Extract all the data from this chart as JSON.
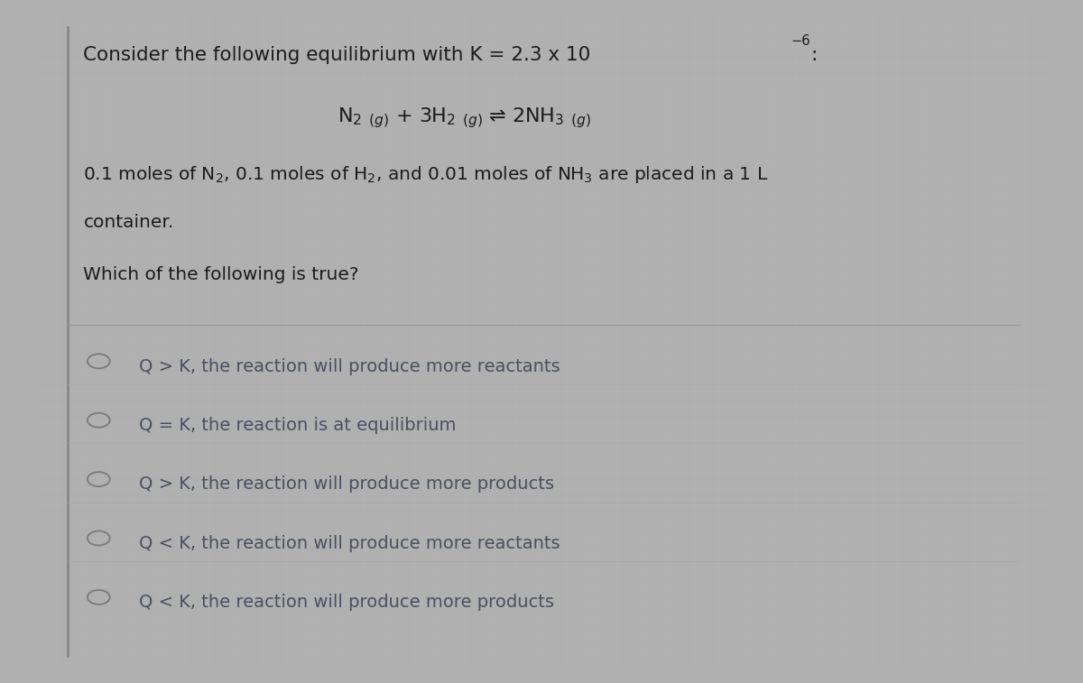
{
  "bg_outer": "#b0b0b0",
  "bg_panel": "#cccccc",
  "grid_color": "#bbbbbb",
  "text_dark": "#1c1c1c",
  "text_option": "#4a5060",
  "left_bar_color": "#888888",
  "divider_color": "#999999",
  "circle_color": "#7a7a7a",
  "title_text": "Consider the following equilibrium with K = 2.3 x 10",
  "title_exp": "-6",
  "title_colon": ":",
  "eq_text": "N$_2$ $_{(g)}$ + 3H$_2$ $_{(g)}$ ⇌ 2NH$_3$ $_{(g)}$",
  "desc1": "0.1 moles of N$_2$, 0.1 moles of H$_2$, and 0.01 moles of NH$_3$ are placed in a 1 L",
  "desc2": "container.",
  "question": "Which of the following is true?",
  "options": [
    "Q > K, the reaction will produce more reactants",
    "Q = K, the reaction is at equilibrium",
    "Q > K, the reaction will produce more products",
    "Q < K, the reaction will produce more reactants",
    "Q < K, the reaction will produce more products"
  ],
  "figsize": [
    12.0,
    7.57
  ],
  "dpi": 100
}
